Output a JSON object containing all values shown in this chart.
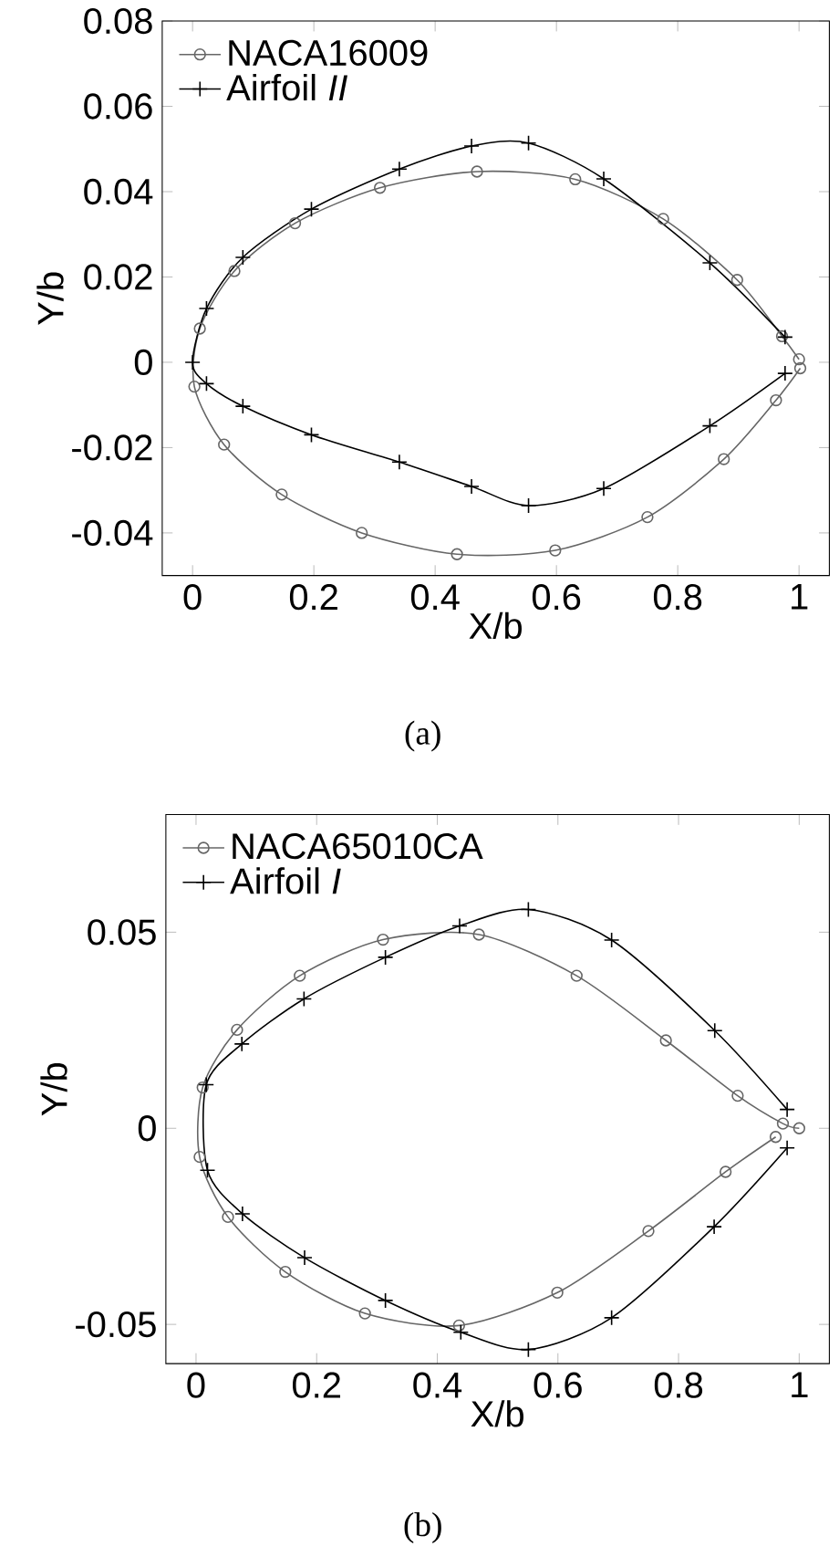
{
  "chart_data": [
    {
      "type": "line",
      "xlabel": "X/b",
      "ylabel": "Y/b",
      "xlim": [
        -0.05,
        1.05
      ],
      "ylim": [
        -0.05,
        0.08
      ],
      "xticks": [
        0,
        0.2,
        0.4,
        0.6,
        0.8,
        1
      ],
      "yticks": [
        -0.04,
        -0.02,
        0,
        0.02,
        0.04,
        0.06,
        0.08
      ],
      "legend": "top left",
      "annotations": [
        "(a)"
      ],
      "series": [
        {
          "name": "NACA16009",
          "color": "#666666",
          "marker": "circle",
          "x": [
            1.0,
            0.972,
            0.898,
            0.776,
            0.631,
            0.469,
            0.309,
            0.169,
            0.069,
            0.012,
            0.003,
            0.052,
            0.147,
            0.279,
            0.436,
            0.598,
            0.75,
            0.876,
            0.962,
            1.002
          ],
          "values": [
            0.0007,
            0.0061,
            0.0193,
            0.0336,
            0.0429,
            0.0447,
            0.0409,
            0.0326,
            0.0214,
            0.0079,
            -0.0057,
            -0.0193,
            -0.031,
            -0.04,
            -0.045,
            -0.0441,
            -0.0363,
            -0.0227,
            -0.0089,
            -0.0014
          ]
        },
        {
          "name": "Airfoil *II*",
          "color": "#000000",
          "marker": "cross",
          "x": [
            0.977,
            0.853,
            0.678,
            0.554,
            0.46,
            0.341,
            0.196,
            0.083,
            0.023,
            0,
            0.023,
            0.083,
            0.196,
            0.341,
            0.46,
            0.554,
            0.678,
            0.853,
            0.977
          ],
          "values": [
            0.0059,
            0.0233,
            0.043,
            0.0514,
            0.0507,
            0.0453,
            0.0359,
            0.0246,
            0.0126,
            0,
            -0.005,
            -0.0103,
            -0.017,
            -0.0234,
            -0.0291,
            -0.0336,
            -0.0296,
            -0.0149,
            -0.0026
          ]
        }
      ]
    },
    {
      "type": "line",
      "xlabel": "X/b",
      "ylabel": "Y/b",
      "xlim": [
        -0.05,
        1.05
      ],
      "ylim": [
        -0.06,
        0.08
      ],
      "xticks": [
        0,
        0.2,
        0.4,
        0.6,
        0.8,
        1
      ],
      "yticks": [
        -0.05,
        0,
        0.05
      ],
      "legend": "top left",
      "annotations": [
        "(b)"
      ],
      "series": [
        {
          "name": "NACA65010CA",
          "color": "#666666",
          "marker": "circle",
          "x": [
            1.0,
            0.973,
            0.898,
            0.779,
            0.631,
            0.469,
            0.31,
            0.172,
            0.068,
            0.011,
            0.006,
            0.053,
            0.148,
            0.28,
            0.436,
            0.599,
            0.75,
            0.878,
            0.961
          ],
          "values": [
            0,
            0.0012,
            0.0083,
            0.0224,
            0.0389,
            0.0494,
            0.0481,
            0.0389,
            0.0251,
            0.0104,
            -0.0073,
            -0.0226,
            -0.0366,
            -0.0472,
            -0.0503,
            -0.0419,
            -0.0262,
            -0.0111,
            -0.0022
          ]
        },
        {
          "name": "Airfoil *I*",
          "color": "#000000",
          "marker": "cross",
          "x": [
            0.98,
            0.86,
            0.689,
            0.551,
            0.437,
            0.314,
            0.179,
            0.076,
            0.017,
            0.019,
            0.077,
            0.18,
            0.314,
            0.439,
            0.551,
            0.689,
            0.859,
            0.98
          ],
          "values": [
            0.0048,
            0.0249,
            0.048,
            0.0558,
            0.0516,
            0.0436,
            0.033,
            0.0215,
            0.0111,
            -0.0107,
            -0.0218,
            -0.033,
            -0.0439,
            -0.052,
            -0.0564,
            -0.0483,
            -0.0251,
            -0.005
          ]
        }
      ]
    }
  ]
}
